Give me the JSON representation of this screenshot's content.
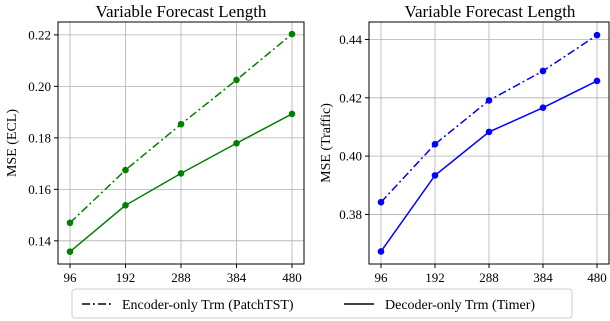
{
  "chart_data": [
    {
      "type": "line",
      "title": "Variable Forecast Length",
      "xlabel": "",
      "ylabel": "MSE (ECL)",
      "x": [
        96,
        192,
        288,
        384,
        480
      ],
      "x_ticklabels": [
        "96",
        "192",
        "288",
        "384",
        "480"
      ],
      "ylim": [
        0.131,
        0.225
      ],
      "y_ticks": [
        0.14,
        0.16,
        0.18,
        0.2,
        0.22
      ],
      "y_ticklabels": [
        "0.14",
        "0.16",
        "0.18",
        "0.20",
        "0.22"
      ],
      "grid": true,
      "color": "#008000",
      "series": [
        {
          "name": "Encoder-only Trm (PatchTST)",
          "style": "dashdot",
          "values": [
            0.147,
            0.1675,
            0.1853,
            0.2025,
            0.2203
          ]
        },
        {
          "name": "Decoder-only Trm (Timer)",
          "style": "solid",
          "values": [
            0.1358,
            0.1538,
            0.1662,
            0.1779,
            0.1893
          ]
        }
      ]
    },
    {
      "type": "line",
      "title": "Variable Forecast Length",
      "xlabel": "",
      "ylabel": "MSE (Traffic)",
      "x": [
        96,
        192,
        288,
        384,
        480
      ],
      "x_ticklabels": [
        "96",
        "192",
        "288",
        "384",
        "480"
      ],
      "ylim": [
        0.363,
        0.446
      ],
      "y_ticks": [
        0.38,
        0.4,
        0.42,
        0.44
      ],
      "y_ticklabels": [
        "0.38",
        "0.40",
        "0.42",
        "0.44"
      ],
      "grid": true,
      "color": "#0000ff",
      "series": [
        {
          "name": "Encoder-only Trm (PatchTST)",
          "style": "dashdot",
          "values": [
            0.3842,
            0.4041,
            0.4191,
            0.4292,
            0.4415
          ]
        },
        {
          "name": "Decoder-only Trm (Timer)",
          "style": "solid",
          "values": [
            0.3673,
            0.3934,
            0.4083,
            0.4166,
            0.4258
          ]
        }
      ]
    }
  ],
  "legend": {
    "items": [
      {
        "label": "Encoder-only Trm (PatchTST)",
        "style": "dashdot"
      },
      {
        "label": "Decoder-only Trm (Timer)",
        "style": "solid"
      }
    ]
  }
}
